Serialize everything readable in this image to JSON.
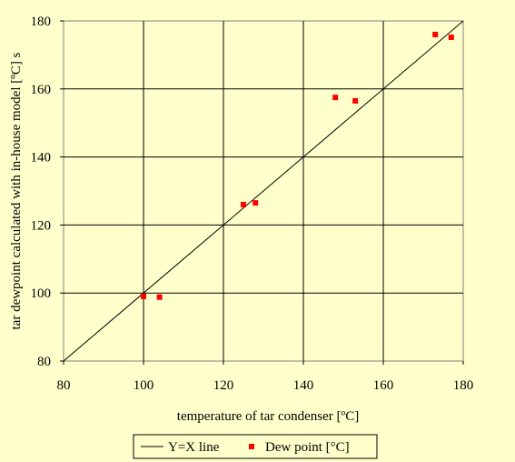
{
  "chart_data": {
    "type": "scatter",
    "title": "",
    "xlabel": "temperature of tar condenser [ºC]",
    "ylabel": "tar dewpoint calculated with in-house model [ºC]  s",
    "xlim": [
      80,
      180
    ],
    "ylim": [
      80,
      180
    ],
    "x_ticks": [
      80,
      100,
      120,
      140,
      160,
      180
    ],
    "y_ticks": [
      80,
      100,
      120,
      140,
      160,
      180
    ],
    "x_tick_labels": [
      "80",
      "100",
      "120",
      "140",
      "160",
      "180"
    ],
    "y_tick_labels": [
      "80",
      "100",
      "120",
      "140",
      "160",
      "180"
    ],
    "grid": true,
    "legend_position": "bottom",
    "series": [
      {
        "name": "Y=X line",
        "kind": "line",
        "color": "#000000",
        "x": [
          80,
          180
        ],
        "y": [
          80,
          180
        ]
      },
      {
        "name": "Dew point [°C]",
        "kind": "scatter",
        "color": "#ff0000",
        "x": [
          100,
          104,
          125,
          128,
          148,
          153,
          173,
          177
        ],
        "y": [
          99,
          98.8,
          126,
          126.5,
          157.5,
          156.5,
          176,
          175.2
        ]
      }
    ]
  }
}
